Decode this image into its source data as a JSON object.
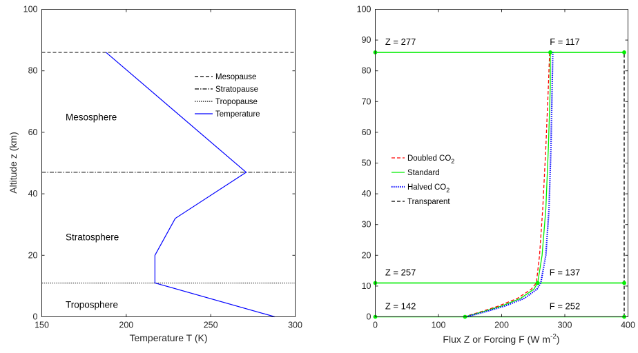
{
  "chart_data": [
    {
      "type": "line",
      "xlabel": "Temperature T (K)",
      "ylabel": "Altitude z (km)",
      "xlim": [
        150,
        300
      ],
      "ylim": [
        0,
        100
      ],
      "xticks": [
        "150",
        "200",
        "250",
        "300"
      ],
      "yticks": [
        "0",
        "20",
        "40",
        "60",
        "80",
        "100"
      ],
      "grid": false,
      "legend_position": "upper-right",
      "region_labels": [
        {
          "text": "Mesosphere",
          "T": 160,
          "z": 65
        },
        {
          "text": "Stratosphere",
          "T": 160,
          "z": 26
        },
        {
          "text": "Troposphere",
          "T": 160,
          "z": 4
        }
      ],
      "hlines": [
        {
          "name": "Mesopause",
          "z": 86,
          "style": "dashed"
        },
        {
          "name": "Stratopause",
          "z": 47,
          "style": "dashdot"
        },
        {
          "name": "Tropopause",
          "z": 11,
          "style": "dotted"
        }
      ],
      "series": [
        {
          "name": "Temperature",
          "color": "#0000ff",
          "x": [
            288,
            217,
            217,
            229,
            271,
            188
          ],
          "y": [
            0,
            11,
            20,
            32,
            47,
            86
          ]
        }
      ]
    },
    {
      "type": "line",
      "xlabel_main": "Flux Z or Forcing F (W m",
      "xlabel_exp": "-2",
      "xlabel_end": ")",
      "xlim": [
        0,
        400
      ],
      "ylim": [
        0,
        100
      ],
      "xticks": [
        "0",
        "100",
        "200",
        "300",
        "400"
      ],
      "yticks": [
        "0",
        "10",
        "20",
        "30",
        "40",
        "50",
        "60",
        "70",
        "80",
        "90",
        "100"
      ],
      "grid": false,
      "legend_position": "middle-left",
      "annotations": [
        {
          "text": "Z = 277",
          "x": 40,
          "y": 88
        },
        {
          "text": "F = 117",
          "x": 300,
          "y": 88
        },
        {
          "text": "Z = 257",
          "x": 40,
          "y": 13
        },
        {
          "text": "F = 137",
          "x": 300,
          "y": 13
        },
        {
          "text": "Z = 142",
          "x": 40,
          "y": 2
        },
        {
          "text": "F = 252",
          "x": 300,
          "y": 2
        }
      ],
      "legend": [
        {
          "main": "Doubled CO",
          "sub": "2",
          "color": "#ff0000",
          "style": "dashed"
        },
        {
          "main": "Standard",
          "sub": "",
          "color": "#00ee00",
          "style": "solid"
        },
        {
          "main": "Halved CO",
          "sub": "2",
          "color": "#0000ff",
          "style": "dotted"
        },
        {
          "main": "Transparent",
          "sub": "",
          "color": "#000000",
          "style": "dashed"
        }
      ],
      "hlines": [
        {
          "y": 86,
          "color": "#00ee00",
          "x_from": 0,
          "x_to": 394
        },
        {
          "y": 11,
          "color": "#00ee00",
          "x_from": 0,
          "x_to": 394
        },
        {
          "y": 0,
          "color": "#00ee00",
          "x_from": 0,
          "x_to": 394
        }
      ],
      "markers": [
        {
          "x": 0,
          "y": 86
        },
        {
          "x": 277,
          "y": 86
        },
        {
          "x": 394,
          "y": 86
        },
        {
          "x": 0,
          "y": 11
        },
        {
          "x": 257,
          "y": 11
        },
        {
          "x": 394,
          "y": 11
        },
        {
          "x": 0,
          "y": 0
        },
        {
          "x": 142,
          "y": 0
        },
        {
          "x": 394,
          "y": 0
        }
      ],
      "series": [
        {
          "name": "Doubled CO2",
          "color": "#ff0000",
          "style": "dashed",
          "x": [
            140,
            165,
            195,
            225,
            247,
            255,
            260,
            265,
            270,
            274,
            276
          ],
          "y": [
            0,
            1.5,
            3.5,
            6,
            9,
            11,
            20,
            35,
            55,
            75,
            86
          ]
        },
        {
          "name": "Standard",
          "color": "#00ee00",
          "style": "solid",
          "x": [
            142,
            168,
            200,
            230,
            251,
            257,
            264,
            270,
            274,
            277,
            277
          ],
          "y": [
            0,
            1.5,
            3.5,
            6,
            9,
            11,
            20,
            35,
            55,
            75,
            86
          ]
        },
        {
          "name": "Halved CO2",
          "color": "#0000ff",
          "style": "dotted",
          "x": [
            144,
            172,
            205,
            236,
            256,
            262,
            270,
            275,
            278,
            280,
            281
          ],
          "y": [
            0,
            1.5,
            3.5,
            6,
            9,
            11,
            20,
            35,
            55,
            75,
            86
          ]
        },
        {
          "name": "Transparent",
          "color": "#000000",
          "style": "dashed",
          "x": [
            394,
            394
          ],
          "y": [
            0,
            86
          ]
        }
      ]
    }
  ]
}
